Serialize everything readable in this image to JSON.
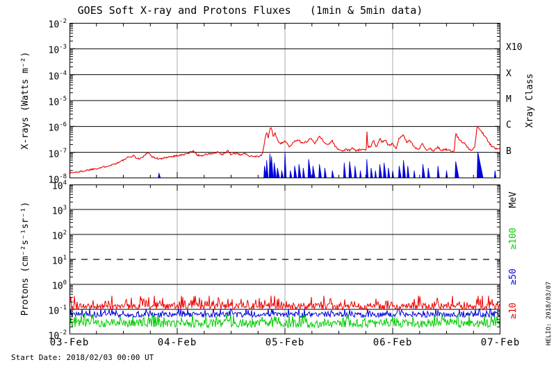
{
  "title": "GOES Soft X-ray and Protons Fluxes   (1min & 5min data)",
  "footer": {
    "start_date": "Start Date: 2018/02/03 00:00 UT"
  },
  "watermark": "HELIO: 2018/03/07",
  "colors": {
    "red": "#ee0000",
    "blue": "#0000dd",
    "green": "#00cc00",
    "grid": "#aaaaaa",
    "axis": "#000000"
  },
  "xaxis": {
    "tick_labels": [
      "03-Feb",
      "04-Feb",
      "05-Feb",
      "06-Feb",
      "07-Feb"
    ],
    "minor_tick_hours": 6,
    "range_days": 4
  },
  "chart_data": [
    {
      "id": "xray",
      "type": "line",
      "ylabel": "X-rays (Watts m⁻²)",
      "yticks": [
        "10^-2",
        "10^-3",
        "10^-4",
        "10^-5",
        "10^-6",
        "10^-7",
        "10^-8"
      ],
      "ylim_exp": [
        -8,
        -2
      ],
      "hlines_exp": [
        -3,
        -4,
        -5,
        -6,
        -7
      ],
      "right_axis": {
        "label": "Xray Class",
        "classes": [
          {
            "label": "X10",
            "exp": -3
          },
          {
            "label": "X",
            "exp": -4
          },
          {
            "label": "M",
            "exp": -5
          },
          {
            "label": "C",
            "exp": -6
          },
          {
            "label": "B",
            "exp": -7
          }
        ]
      },
      "series": [
        {
          "name": "xray-long-1-8A",
          "color": "#ee0000",
          "points": [
            [
              0,
              1.6e-08
            ],
            [
              0.05,
              1.7e-08
            ],
            [
              0.1,
              1.8e-08
            ],
            [
              0.15,
              2e-08
            ],
            [
              0.2,
              2.2e-08
            ],
            [
              0.25,
              2.4e-08
            ],
            [
              0.3,
              2.6e-08
            ],
            [
              0.35,
              3e-08
            ],
            [
              0.4,
              3.4e-08
            ],
            [
              0.45,
              4e-08
            ],
            [
              0.5,
              5e-08
            ],
            [
              0.55,
              6.5e-08
            ],
            [
              0.6,
              7.5e-08
            ],
            [
              0.63,
              5.5e-08
            ],
            [
              0.68,
              6.5e-08
            ],
            [
              0.73,
              1.05e-07
            ],
            [
              0.76,
              7e-08
            ],
            [
              0.8,
              6e-08
            ],
            [
              0.85,
              5.5e-08
            ],
            [
              0.9,
              6.5e-08
            ],
            [
              0.95,
              7e-08
            ],
            [
              1.0,
              7.5e-08
            ],
            [
              1.05,
              8e-08
            ],
            [
              1.1,
              9e-08
            ],
            [
              1.15,
              1.2e-07
            ],
            [
              1.18,
              8e-08
            ],
            [
              1.22,
              7.5e-08
            ],
            [
              1.28,
              8.5e-08
            ],
            [
              1.33,
              9e-08
            ],
            [
              1.38,
              1e-07
            ],
            [
              1.42,
              8e-08
            ],
            [
              1.47,
              1.15e-07
            ],
            [
              1.5,
              8e-08
            ],
            [
              1.53,
              9.5e-08
            ],
            [
              1.58,
              8e-08
            ],
            [
              1.62,
              9e-08
            ],
            [
              1.67,
              7.5e-08
            ],
            [
              1.72,
              7e-08
            ],
            [
              1.76,
              7e-08
            ],
            [
              1.79,
              8e-08
            ],
            [
              1.81,
              2.5e-07
            ],
            [
              1.83,
              6.5e-07
            ],
            [
              1.845,
              3.5e-07
            ],
            [
              1.86,
              8e-07
            ],
            [
              1.875,
              9.5e-07
            ],
            [
              1.89,
              4e-07
            ],
            [
              1.91,
              5.5e-07
            ],
            [
              1.93,
              3e-07
            ],
            [
              1.96,
              2.2e-07
            ],
            [
              2.0,
              2.8e-07
            ],
            [
              2.04,
              1.6e-07
            ],
            [
              2.08,
              2.5e-07
            ],
            [
              2.12,
              3.2e-07
            ],
            [
              2.16,
              2.2e-07
            ],
            [
              2.2,
              2.6e-07
            ],
            [
              2.24,
              3.5e-07
            ],
            [
              2.28,
              2.2e-07
            ],
            [
              2.32,
              4.5e-07
            ],
            [
              2.36,
              2.5e-07
            ],
            [
              2.4,
              2e-07
            ],
            [
              2.44,
              2.8e-07
            ],
            [
              2.47,
              1.6e-07
            ],
            [
              2.5,
              1.3e-07
            ],
            [
              2.53,
              1.1e-07
            ],
            [
              2.56,
              1.3e-07
            ],
            [
              2.6,
              1.2e-07
            ],
            [
              2.63,
              1.5e-07
            ],
            [
              2.66,
              1.1e-07
            ],
            [
              2.7,
              1.3e-07
            ],
            [
              2.73,
              1.2e-07
            ],
            [
              2.755,
              1.3e-07
            ],
            [
              2.76,
              7.5e-07
            ],
            [
              2.77,
              1.6e-07
            ],
            [
              2.8,
              1.8e-07
            ],
            [
              2.82,
              3e-07
            ],
            [
              2.85,
              1.6e-07
            ],
            [
              2.88,
              3.5e-07
            ],
            [
              2.9,
              2.5e-07
            ],
            [
              2.93,
              3e-07
            ],
            [
              2.96,
              1.8e-07
            ],
            [
              3.0,
              2.2e-07
            ],
            [
              3.03,
              1.4e-07
            ],
            [
              3.06,
              3.5e-07
            ],
            [
              3.1,
              4.5e-07
            ],
            [
              3.13,
              2.5e-07
            ],
            [
              3.16,
              3e-07
            ],
            [
              3.2,
              1.6e-07
            ],
            [
              3.24,
              1.3e-07
            ],
            [
              3.28,
              2.2e-07
            ],
            [
              3.31,
              1.2e-07
            ],
            [
              3.35,
              1.4e-07
            ],
            [
              3.38,
              1.1e-07
            ],
            [
              3.42,
              1.6e-07
            ],
            [
              3.45,
              1.2e-07
            ],
            [
              3.5,
              1.3e-07
            ],
            [
              3.54,
              1.1e-07
            ],
            [
              3.57,
              1e-07
            ],
            [
              3.585,
              5.5e-07
            ],
            [
              3.61,
              3.5e-07
            ],
            [
              3.64,
              2.5e-07
            ],
            [
              3.67,
              2.3e-07
            ],
            [
              3.7,
              1.5e-07
            ],
            [
              3.73,
              1.2e-07
            ],
            [
              3.76,
              1.5e-07
            ],
            [
              3.785,
              1.05e-06
            ],
            [
              3.8,
              8.5e-07
            ],
            [
              3.83,
              6e-07
            ],
            [
              3.86,
              4e-07
            ],
            [
              3.89,
              2.5e-07
            ],
            [
              3.92,
              1.7e-07
            ],
            [
              3.95,
              1.4e-07
            ],
            [
              4.0,
              1.5e-07
            ]
          ]
        },
        {
          "name": "xray-short-05-4A",
          "color": "#0000dd",
          "baseline": 1e-08,
          "spikes": [
            [
              0.83,
              1.6e-08,
              0.015
            ],
            [
              1.81,
              3e-08,
              0.02
            ],
            [
              1.83,
              5e-08,
              0.015
            ],
            [
              1.86,
              9e-08,
              0.02
            ],
            [
              1.875,
              7e-08,
              0.015
            ],
            [
              1.9,
              4e-08,
              0.02
            ],
            [
              1.93,
              2.5e-08,
              0.02
            ],
            [
              1.97,
              2e-08,
              0.015
            ],
            [
              2.0,
              1.05e-07,
              0.012
            ],
            [
              2.05,
              2e-08,
              0.015
            ],
            [
              2.09,
              3e-08,
              0.02
            ],
            [
              2.13,
              3.5e-08,
              0.02
            ],
            [
              2.17,
              2.5e-08,
              0.015
            ],
            [
              2.22,
              5.5e-08,
              0.025
            ],
            [
              2.26,
              3e-08,
              0.02
            ],
            [
              2.32,
              3.5e-08,
              0.02
            ],
            [
              2.37,
              2.5e-08,
              0.015
            ],
            [
              2.44,
              2e-08,
              0.015
            ],
            [
              2.55,
              4e-08,
              0.015
            ],
            [
              2.6,
              4.5e-08,
              0.02
            ],
            [
              2.65,
              3e-08,
              0.015
            ],
            [
              2.7,
              2e-08,
              0.01
            ],
            [
              2.76,
              5.5e-08,
              0.012
            ],
            [
              2.8,
              2.5e-08,
              0.015
            ],
            [
              2.84,
              2e-08,
              0.01
            ],
            [
              2.88,
              3.5e-08,
              0.02
            ],
            [
              2.92,
              4e-08,
              0.02
            ],
            [
              2.96,
              2.5e-08,
              0.015
            ],
            [
              3.0,
              2e-08,
              0.01
            ],
            [
              3.06,
              3e-08,
              0.02
            ],
            [
              3.1,
              5e-08,
              0.02
            ],
            [
              3.14,
              3e-08,
              0.015
            ],
            [
              3.2,
              2e-08,
              0.01
            ],
            [
              3.28,
              3.5e-08,
              0.02
            ],
            [
              3.33,
              2.5e-08,
              0.015
            ],
            [
              3.42,
              3e-08,
              0.015
            ],
            [
              3.5,
              2e-08,
              0.01
            ],
            [
              3.585,
              4.5e-08,
              0.03
            ],
            [
              3.79,
              1.05e-07,
              0.05
            ],
            [
              3.95,
              2e-08,
              0.01
            ]
          ]
        }
      ]
    },
    {
      "id": "protons",
      "type": "line",
      "ylabel": "Protons (cm⁻²s⁻¹sr⁻¹)",
      "yticks": [
        "10^4",
        "10^3",
        "10^2",
        "10^1",
        "10^0",
        "10^-1",
        "10^-2"
      ],
      "ylim_exp": [
        -2,
        4
      ],
      "hlines_exp": [
        3,
        2,
        0,
        -1
      ],
      "dashed_line_exp": 1,
      "right_axis": {
        "label": "MeV",
        "thresholds": [
          {
            "label": "≥100",
            "color": "#00cc00"
          },
          {
            "label": "≥50",
            "color": "#0000dd"
          },
          {
            "label": "≥10",
            "color": "#ee0000"
          }
        ]
      },
      "series": [
        {
          "name": "protons-ge10MeV",
          "color": "#ee0000",
          "mean": 0.13,
          "range": [
            0.09,
            0.35
          ]
        },
        {
          "name": "protons-ge50MeV",
          "color": "#0000dd",
          "mean": 0.06,
          "range": [
            0.045,
            0.105
          ]
        },
        {
          "name": "protons-ge100MeV",
          "color": "#00cc00",
          "mean": 0.027,
          "range": [
            0.017,
            0.062
          ]
        }
      ]
    }
  ]
}
